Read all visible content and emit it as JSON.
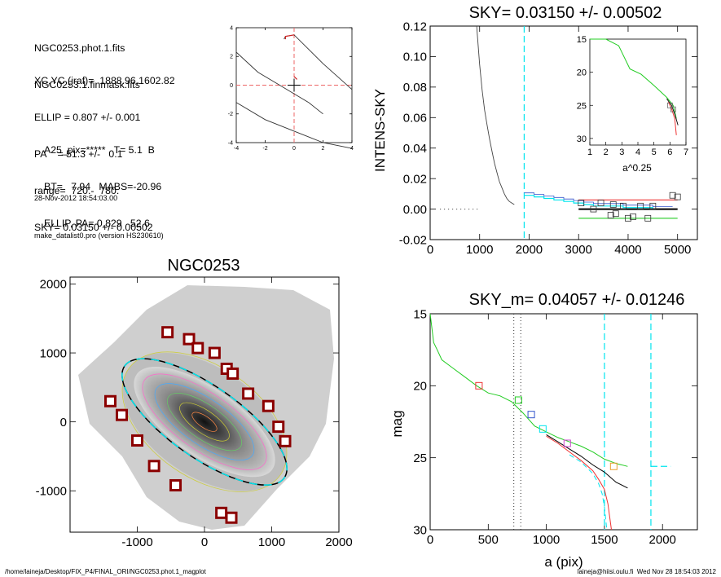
{
  "info": {
    "file_lines": [
      "NGC0253.phot.1.fits",
      "NGC0253.1.finmask.fits"
    ],
    "param_lines": [
      "XC,YC (iraf)=  1888.96,1602.82",
      "ELLIP = 0.807 +/- 0.001",
      "PA    = 51.3 +/-   0.1",
      "range=  720.-  780.",
      "SKY= 0.03150 +/- 0.00502"
    ],
    "result_lines": [
      "A25_pix=*****   T= 5.1  B",
      "BT=   7.94   MABS=-20.96",
      "ELLIP, PA= 0.829   52.6"
    ],
    "timestamp": "28-Nov-2012 18:54:03.00",
    "program": "make_datalist0.pro (version HS230610)"
  },
  "footer": {
    "path": "/home/laineja/Desktop/FIX_P4/FINAL_ORI/NGC0253.phot.1_magplot",
    "user": "laineja@hiisi.oulu.fi  Wed Nov 28 18:54:03 2012"
  },
  "colors": {
    "dark": "#333333",
    "cyan": "#00e5ee",
    "green": "#22cc22",
    "red": "#ee3333",
    "blue": "#3355cc",
    "magenta": "#cc44cc",
    "box": "#8b0000"
  },
  "chart_data": [
    {
      "id": "contour",
      "type": "line",
      "title": "",
      "xlabel": "",
      "ylabel": "",
      "xlim": [
        -4,
        4
      ],
      "ylim": [
        -4,
        4
      ],
      "xticks": [
        -4,
        -2,
        0,
        2,
        4
      ],
      "yticks": [
        -4,
        -2,
        0,
        2,
        4
      ],
      "tick_labels": [
        "-4",
        "-2",
        "0",
        "2",
        "4"
      ],
      "crosshair": {
        "x": 0,
        "y": 0
      },
      "series": [
        {
          "x": [
            -4,
            -2,
            0,
            2,
            4
          ],
          "y": [
            -1.2,
            -2.4,
            -3.2,
            -4.0,
            -4.4
          ]
        },
        {
          "x": [
            -4,
            -2.5,
            -1,
            0,
            1,
            2
          ],
          "y": [
            2.3,
            0.9,
            0.0,
            -0.6,
            -1.2,
            -2.0
          ]
        },
        {
          "x": [
            -0.7,
            -0.6,
            0,
            1,
            2,
            3,
            4
          ],
          "y": [
            3.2,
            3.4,
            3.5,
            2.5,
            1.5,
            0.6,
            -0.3
          ]
        }
      ],
      "highlight_segments": [
        {
          "x": [
            -0.6,
            -0.6,
            0
          ],
          "y": [
            3.2,
            3.4,
            3.5
          ]
        },
        {
          "x": [
            0,
            0.2
          ],
          "y": [
            0.6,
            0.4
          ]
        }
      ]
    },
    {
      "id": "sky",
      "type": "line",
      "title": "SKY= 0.03150 +/- 0.00502",
      "xlabel": "",
      "ylabel": "INTENS-SKY",
      "xlim": [
        0,
        5400
      ],
      "ylim": [
        -0.02,
        0.12
      ],
      "xticks": [
        0,
        1000,
        2000,
        3000,
        4000,
        5000
      ],
      "xtick_labels": [
        "0",
        "1000",
        "2000",
        "3000",
        "4000",
        "5000"
      ],
      "yticks": [
        -0.02,
        0.0,
        0.02,
        0.04,
        0.06,
        0.08,
        0.1,
        0.12
      ],
      "ytick_labels": [
        "-0.02",
        "0.00",
        "0.02",
        "0.04",
        "0.06",
        "0.08",
        "0.10",
        "0.12"
      ],
      "vlines": [
        1900
      ],
      "dotted_segment": {
        "x": [
          200,
          1000
        ],
        "y": 0.0
      },
      "profile": {
        "x": [
          940,
          1000,
          1050,
          1100,
          1150,
          1200,
          1250,
          1300,
          1350,
          1400,
          1450,
          1500,
          1550,
          1600,
          1650,
          1700
        ],
        "y": [
          0.12,
          0.095,
          0.078,
          0.065,
          0.055,
          0.046,
          0.038,
          0.03,
          0.024,
          0.018,
          0.014,
          0.01,
          0.007,
          0.005,
          0.004,
          0.003
        ]
      },
      "steps": {
        "x": [
          1900,
          2100,
          2300,
          2500,
          2700,
          2900,
          3100,
          3300,
          3500,
          3700,
          3900,
          4100,
          4300,
          4500,
          4700
        ],
        "y": [
          0.009,
          0.008,
          0.007,
          0.006,
          0.005,
          0.004,
          0.003,
          0.002,
          0.002,
          0.002,
          0.001,
          0.001,
          0.001,
          0.0,
          0.0
        ]
      },
      "levels": [
        {
          "name": "red",
          "x": [
            3000,
            5000
          ],
          "y": 0.006
        },
        {
          "name": "black",
          "x": [
            3000,
            5000
          ],
          "y": 0.0
        },
        {
          "name": "green",
          "x": [
            3000,
            5000
          ],
          "y": -0.006
        }
      ],
      "squares": {
        "x": [
          3050,
          3300,
          3450,
          3650,
          3700,
          3750,
          3900,
          4000,
          4100,
          4250,
          4400,
          4500,
          4900,
          5000
        ],
        "y": [
          0.004,
          0.0,
          0.004,
          -0.004,
          0.003,
          -0.003,
          0.002,
          -0.006,
          -0.005,
          0.002,
          -0.006,
          0.002,
          0.009,
          0.008
        ]
      },
      "inset": {
        "xlabel": "a^0.25",
        "xlim": [
          1,
          7
        ],
        "ylim": [
          15,
          31
        ],
        "xticks": [
          1,
          2,
          3,
          4,
          5,
          6,
          7
        ],
        "yticks": [
          15,
          20,
          25,
          30
        ],
        "x": [
          1.0,
          2.0,
          2.8,
          3.5,
          4.2,
          5.0,
          5.8,
          6.2,
          6.4
        ],
        "y": [
          15.0,
          15.0,
          16.0,
          19.5,
          20.3,
          22.0,
          23.8,
          25.0,
          27.0
        ],
        "red_tail": {
          "x": [
            5.9,
            6.1,
            6.3,
            6.4
          ],
          "y": [
            24.5,
            25.5,
            27.0,
            29.5
          ]
        },
        "black_tail": {
          "x": [
            5.8,
            6.1,
            6.3,
            6.5
          ],
          "y": [
            24.0,
            25.0,
            26.3,
            28.0
          ]
        },
        "squares": {
          "x": [
            6.0,
            6.2
          ],
          "y": [
            25.0,
            25.6
          ]
        }
      }
    },
    {
      "id": "image",
      "type": "scatter",
      "title": "NGC0253",
      "xlabel": "",
      "ylabel": "",
      "xlim": [
        -2000,
        2000
      ],
      "ylim": [
        -1600,
        2100
      ],
      "xticks": [
        -1000,
        0,
        1000,
        2000
      ],
      "xtick_labels": [
        "-1000",
        "0",
        "1000",
        "2000"
      ],
      "yticks": [
        -1000,
        0,
        1000,
        2000
      ],
      "ytick_labels": [
        "-1000",
        "0",
        "1000",
        "2000"
      ],
      "ellipse": {
        "cx": 0,
        "cy": 0,
        "a": 1450,
        "b": 520,
        "pa_deg": 35
      },
      "squares": {
        "x": [
          -550,
          -230,
          -100,
          150,
          330,
          420,
          650,
          950,
          1100,
          1200,
          -1400,
          -1230,
          -1000,
          -750,
          -430,
          250,
          400
        ],
        "y": [
          1300,
          1200,
          1070,
          1000,
          770,
          700,
          410,
          230,
          -70,
          -280,
          300,
          100,
          -270,
          -640,
          -920,
          -1320,
          -1390
        ]
      }
    },
    {
      "id": "mag",
      "type": "line",
      "title": "SKY_m=  0.04057 +/- 0.01246",
      "xlabel": "a (pix)",
      "ylabel": "mag",
      "xlim": [
        0,
        2300
      ],
      "ylim": [
        30,
        15
      ],
      "xticks": [
        0,
        500,
        1000,
        1500,
        2000
      ],
      "xtick_labels": [
        "0",
        "500",
        "1000",
        "1500",
        "2000"
      ],
      "yticks": [
        15,
        20,
        25,
        30
      ],
      "ytick_labels": [
        "15",
        "20",
        "25",
        "30"
      ],
      "vlines_dotted": [
        720,
        780
      ],
      "vlines_dashed": [
        1500,
        1900
      ],
      "cyan_segment": {
        "x": [
          1900,
          2070
        ],
        "y": 25.6
      },
      "green": {
        "x": [
          0,
          30,
          60,
          100,
          200,
          300,
          400,
          500,
          600,
          700,
          800,
          900,
          1000,
          1100,
          1200,
          1300,
          1400,
          1500,
          1600,
          1700
        ],
        "y": [
          15.0,
          17.0,
          17.5,
          18.2,
          18.8,
          19.4,
          20.0,
          20.5,
          20.7,
          21.1,
          21.9,
          22.8,
          23.2,
          23.6,
          23.9,
          24.2,
          24.6,
          25.1,
          25.4,
          25.6
        ]
      },
      "black": {
        "x": [
          1000,
          1100,
          1200,
          1300,
          1400,
          1500,
          1600,
          1700
        ],
        "y": [
          23.4,
          23.9,
          24.4,
          24.9,
          25.5,
          26.0,
          26.7,
          27.1
        ]
      },
      "red": {
        "x": [
          1000,
          1100,
          1200,
          1300,
          1400,
          1450,
          1500,
          1530,
          1560
        ],
        "y": [
          23.5,
          24.0,
          24.6,
          25.2,
          25.9,
          26.5,
          27.2,
          28.2,
          30.0
        ]
      },
      "cyan": {
        "x": [
          1200,
          1300,
          1400,
          1450,
          1480,
          1500,
          1520
        ],
        "y": [
          24.8,
          25.3,
          26.1,
          26.8,
          27.5,
          28.4,
          30.0
        ]
      },
      "markers": [
        {
          "x": 420,
          "y": 20.0,
          "color": "red"
        },
        {
          "x": 760,
          "y": 21.0,
          "color": "green"
        },
        {
          "x": 870,
          "y": 22.0,
          "color": "blue"
        },
        {
          "x": 970,
          "y": 23.0,
          "color": "cyan"
        },
        {
          "x": 1180,
          "y": 24.0,
          "color": "magenta"
        },
        {
          "x": 1580,
          "y": 25.6,
          "color": "orange"
        }
      ]
    }
  ]
}
